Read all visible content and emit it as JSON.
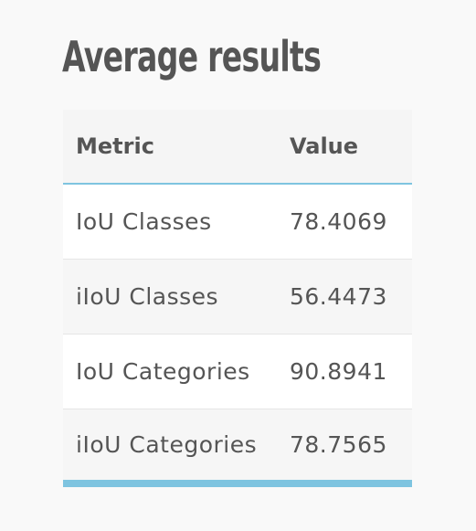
{
  "page": {
    "title": "Average results"
  },
  "table": {
    "headers": {
      "metric": "Metric",
      "value": "Value"
    },
    "rows": [
      {
        "metric": "IoU Classes",
        "value": "78.4069"
      },
      {
        "metric": "iIoU Classes",
        "value": "56.4473"
      },
      {
        "metric": "IoU Categories",
        "value": "90.8941"
      },
      {
        "metric": "iIoU Categories",
        "value": "78.7565"
      }
    ]
  },
  "colors": {
    "background": "#f9f9f9",
    "text": "#555555",
    "accent": "#7ec4e0",
    "row_alt": "#f6f6f6",
    "row": "#ffffff"
  }
}
